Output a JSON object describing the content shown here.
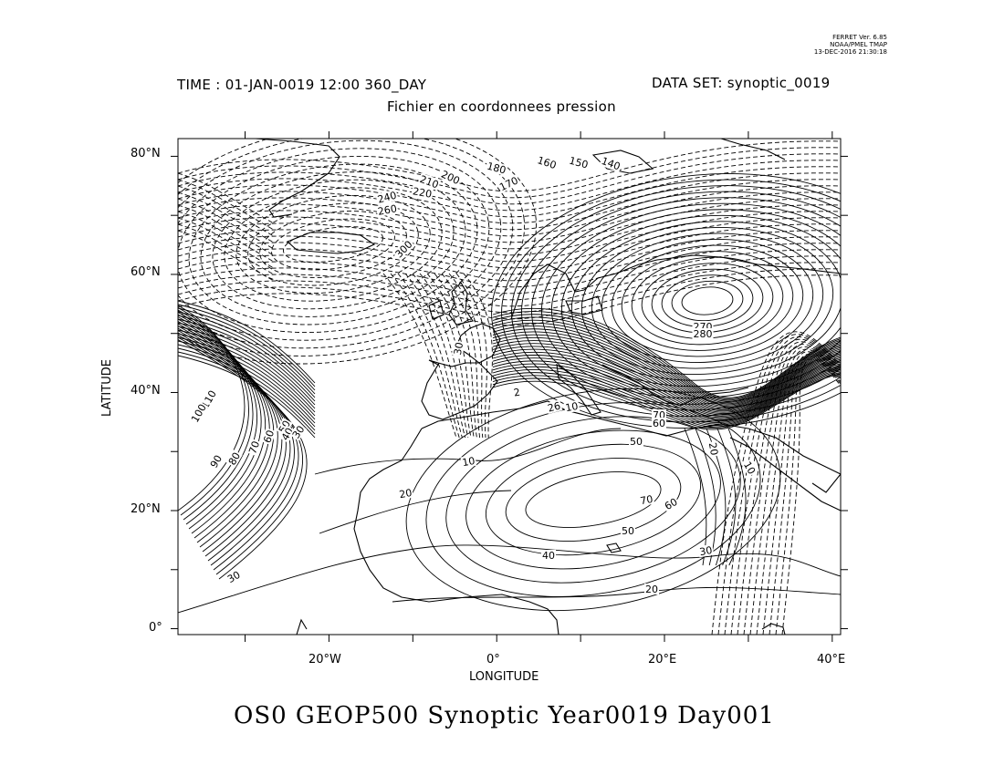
{
  "stamp": {
    "line1": "FERRET Ver. 6.85",
    "line2": "NOAA/PMEL TMAP",
    "line3": "13-DEC-2016 21:30:18"
  },
  "header": {
    "time": "TIME : 01-JAN-0019 12:00 360_DAY",
    "dataset": "DATA SET: synoptic_0019",
    "subtitle": "Fichier en coordonnees pression"
  },
  "axes": {
    "xlabel": "LONGITUDE",
    "ylabel": "LATITUDE",
    "xticks": [
      "20°W",
      "0°",
      "20°E",
      "40°E"
    ],
    "yticks": [
      "0°",
      "20°N",
      "40°N",
      "60°N",
      "80°N"
    ]
  },
  "bottom_title": "OS0 GEOP500 Synoptic Year0019 Day001",
  "contour_labels": {
    "north": [
      "180",
      "160",
      "150",
      "140",
      "170",
      "210",
      "200",
      "220",
      "240",
      "260",
      "300"
    ],
    "europe": [
      "270",
      "280",
      "30",
      "2",
      "26",
      "10"
    ],
    "east": [
      "70",
      "60",
      "50",
      "20",
      "10"
    ],
    "atlantic": [
      "110",
      "100",
      "90",
      "80",
      "70",
      "60",
      "50",
      "40",
      "30"
    ],
    "tropics": [
      "10",
      "20",
      "70",
      "60",
      "50",
      "40",
      "30",
      "30",
      "20"
    ]
  },
  "chart_data": {
    "type": "contour-map",
    "title": "OS0 GEOP500 Synoptic Year0019 Day001",
    "xlabel": "LONGITUDE",
    "ylabel": "LATITUDE",
    "xlim": [
      -38,
      41
    ],
    "ylim": [
      -1,
      83
    ],
    "lon_ticks": [
      -20,
      0,
      20,
      40
    ],
    "lat_ticks": [
      0,
      20,
      40,
      60,
      80
    ],
    "contour_style": "positive solid, negative dashed",
    "grid": false
  }
}
